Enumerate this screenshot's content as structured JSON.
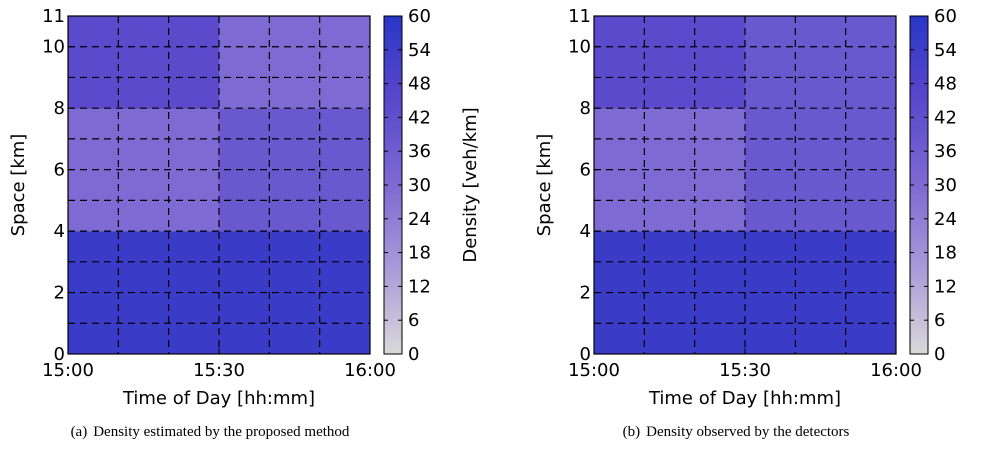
{
  "chart_data": [
    {
      "type": "heatmap",
      "caption_tag": "(a)",
      "caption_text": "Density estimated by the proposed method",
      "xlabel": "Time of Day [hh:mm]",
      "ylabel": "Space [km]",
      "x_tick_labels": [
        "15:00",
        "15:30",
        "16:00"
      ],
      "x_tick_values": [
        0,
        30,
        60
      ],
      "xlim": [
        0,
        60
      ],
      "y_ticks": [
        0,
        2,
        4,
        6,
        8,
        10,
        11
      ],
      "ylim": [
        0,
        11
      ],
      "grid": true,
      "cell_time_edges": [
        0,
        10,
        20,
        30,
        40,
        50,
        60
      ],
      "cell_space_edges": [
        0,
        4,
        8,
        11
      ],
      "z_rows_bottom_to_top": [
        [
          55,
          55,
          55,
          55,
          55,
          55
        ],
        [
          30,
          30,
          30,
          38,
          38,
          38
        ],
        [
          44,
          44,
          44,
          30,
          30,
          30
        ]
      ],
      "colorbar": {
        "label": "Density [veh/km]",
        "ticks": [
          0,
          6,
          12,
          18,
          24,
          30,
          36,
          42,
          48,
          54,
          60
        ],
        "range": [
          0,
          60
        ],
        "colormap_stops": [
          "#d9d9d9",
          "#a99bd9",
          "#7d6ad2",
          "#5a48cc",
          "#2a36c6"
        ]
      }
    },
    {
      "type": "heatmap",
      "caption_tag": "(b)",
      "caption_text": "Density observed by the detectors",
      "xlabel": "Time of Day [hh:mm]",
      "ylabel": "Space [km]",
      "x_tick_labels": [
        "15:00",
        "15:30",
        "16:00"
      ],
      "x_tick_values": [
        0,
        30,
        60
      ],
      "xlim": [
        0,
        60
      ],
      "y_ticks": [
        0,
        2,
        4,
        6,
        8,
        10,
        11
      ],
      "ylim": [
        0,
        11
      ],
      "grid": true,
      "cell_time_edges": [
        0,
        10,
        20,
        30,
        40,
        50,
        60
      ],
      "cell_space_edges": [
        0,
        4,
        8,
        11
      ],
      "z_rows_bottom_to_top": [
        [
          55,
          55,
          55,
          55,
          55,
          55
        ],
        [
          30,
          30,
          30,
          38,
          38,
          38
        ],
        [
          44,
          44,
          44,
          38,
          38,
          38
        ]
      ],
      "colorbar": {
        "label": "Density [veh/km]",
        "ticks": [
          0,
          6,
          12,
          18,
          24,
          30,
          36,
          42,
          48,
          54,
          60
        ],
        "range": [
          0,
          60
        ],
        "colormap_stops": [
          "#d9d9d9",
          "#a99bd9",
          "#7d6ad2",
          "#5a48cc",
          "#2a36c6"
        ]
      }
    }
  ]
}
